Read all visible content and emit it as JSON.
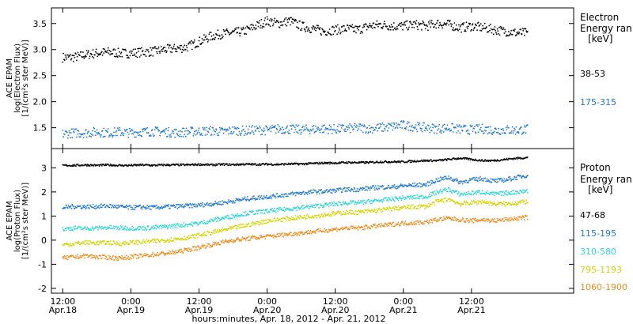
{
  "chart_data": [
    {
      "type": "scatter",
      "title": "",
      "ylabel_lines": [
        "ACE EPAM",
        "log(Electron Flux)",
        "[1/(cm²s ster MeV)]"
      ],
      "ylim": [
        1.1,
        3.8
      ],
      "yticks": [
        "1.5",
        "2.0",
        "2.5",
        "3.0",
        "3.5"
      ],
      "ytick_values": [
        1.5,
        2.0,
        2.5,
        3.0,
        3.5
      ],
      "legend": {
        "header_lines": [
          "Electron",
          "Energy ran",
          "[keV]"
        ],
        "placement": "right"
      },
      "series": [
        {
          "name": "38-53",
          "color": "#000000",
          "x": [
            0,
            2,
            4,
            6,
            8,
            10,
            12,
            14,
            16,
            18,
            20,
            22,
            24,
            26,
            28,
            30,
            32,
            34,
            36,
            38,
            40,
            42,
            44,
            46,
            48,
            50,
            52,
            54,
            56,
            58,
            60,
            62,
            64,
            66,
            68,
            70,
            72,
            74,
            76,
            78,
            80,
            82
          ],
          "values": [
            2.85,
            2.85,
            2.9,
            2.93,
            2.95,
            2.93,
            2.93,
            2.95,
            2.96,
            3.0,
            3.02,
            3.05,
            3.15,
            3.25,
            3.3,
            3.32,
            3.35,
            3.45,
            3.55,
            3.5,
            3.55,
            3.45,
            3.4,
            3.35,
            3.38,
            3.4,
            3.38,
            3.45,
            3.48,
            3.45,
            3.45,
            3.48,
            3.45,
            3.5,
            3.48,
            3.42,
            3.45,
            3.42,
            3.38,
            3.35,
            3.32,
            3.32
          ]
        },
        {
          "name": "175-315",
          "color": "#1f78d2",
          "x": [
            0,
            2,
            4,
            6,
            8,
            10,
            12,
            14,
            16,
            18,
            20,
            22,
            24,
            26,
            28,
            30,
            32,
            34,
            36,
            38,
            40,
            42,
            44,
            46,
            48,
            50,
            52,
            54,
            56,
            58,
            60,
            62,
            64,
            66,
            68,
            70,
            72,
            74,
            76,
            78,
            80,
            82
          ],
          "values": [
            1.38,
            1.4,
            1.4,
            1.42,
            1.4,
            1.42,
            1.4,
            1.42,
            1.43,
            1.42,
            1.4,
            1.42,
            1.43,
            1.44,
            1.42,
            1.45,
            1.44,
            1.46,
            1.45,
            1.48,
            1.47,
            1.46,
            1.47,
            1.48,
            1.47,
            1.48,
            1.5,
            1.48,
            1.5,
            1.52,
            1.55,
            1.52,
            1.5,
            1.48,
            1.5,
            1.47,
            1.46,
            1.48,
            1.45,
            1.46,
            1.45,
            1.47
          ]
        }
      ]
    },
    {
      "type": "scatter",
      "title": "",
      "ylabel_lines": [
        "ACE EPAM",
        "log(Proton Flux)",
        "[1/(cm²s ster MeV)]"
      ],
      "ylim": [
        -2.2,
        3.8
      ],
      "yticks": [
        "-2",
        "-1",
        "0",
        "1",
        "2",
        "3"
      ],
      "ytick_values": [
        -2,
        -1,
        0,
        1,
        2,
        3
      ],
      "xlabel": "hours:minutes, Apr. 18, 2012 - Apr. 21, 2012",
      "xlim": [
        -2,
        90
      ],
      "xticks": [
        {
          "x": 0,
          "time": "12:00",
          "date": "Apr.18"
        },
        {
          "x": 12,
          "time": "0:00",
          "date": "Apr.19"
        },
        {
          "x": 24,
          "time": "12:00",
          "date": "Apr.19"
        },
        {
          "x": 36,
          "time": "0:00",
          "date": "Apr.20"
        },
        {
          "x": 48,
          "time": "12:00",
          "date": "Apr.20"
        },
        {
          "x": 60,
          "time": "0:00",
          "date": "Apr.21"
        },
        {
          "x": 72,
          "time": "12:00",
          "date": "Apr.21"
        }
      ],
      "legend": {
        "header_lines": [
          "Proton",
          "Energy ran",
          "[keV]"
        ],
        "placement": "right"
      },
      "series": [
        {
          "name": "47-68",
          "color": "#000000",
          "x": [
            0,
            2,
            4,
            6,
            8,
            10,
            12,
            14,
            16,
            18,
            20,
            22,
            24,
            26,
            28,
            30,
            32,
            34,
            36,
            38,
            40,
            42,
            44,
            46,
            48,
            50,
            52,
            54,
            56,
            58,
            60,
            62,
            64,
            66,
            68,
            70,
            72,
            74,
            76,
            78,
            80,
            82
          ],
          "values": [
            3.1,
            3.1,
            3.12,
            3.1,
            3.12,
            3.1,
            3.1,
            3.12,
            3.1,
            3.12,
            3.12,
            3.12,
            3.14,
            3.12,
            3.14,
            3.13,
            3.15,
            3.14,
            3.15,
            3.14,
            3.16,
            3.16,
            3.18,
            3.2,
            3.2,
            3.22,
            3.22,
            3.22,
            3.25,
            3.25,
            3.25,
            3.28,
            3.3,
            3.3,
            3.35,
            3.4,
            3.35,
            3.3,
            3.3,
            3.35,
            3.4,
            3.42
          ]
        },
        {
          "name": "115-195",
          "color": "#1f78d2",
          "x": [
            0,
            2,
            4,
            6,
            8,
            10,
            12,
            14,
            16,
            18,
            20,
            22,
            24,
            26,
            28,
            30,
            32,
            34,
            36,
            38,
            40,
            42,
            44,
            46,
            48,
            50,
            52,
            54,
            56,
            58,
            60,
            62,
            64,
            66,
            68,
            70,
            72,
            74,
            76,
            78,
            80,
            82
          ],
          "values": [
            1.35,
            1.4,
            1.38,
            1.4,
            1.42,
            1.38,
            1.35,
            1.37,
            1.35,
            1.38,
            1.4,
            1.42,
            1.45,
            1.5,
            1.55,
            1.62,
            1.7,
            1.75,
            1.8,
            1.85,
            1.9,
            1.95,
            2.0,
            2.02,
            2.05,
            2.1,
            2.1,
            2.15,
            2.2,
            2.2,
            2.25,
            2.28,
            2.3,
            2.5,
            2.6,
            2.4,
            2.5,
            2.55,
            2.45,
            2.5,
            2.6,
            2.7
          ]
        },
        {
          "name": "310-580",
          "color": "#2ed6d6",
          "x": [
            0,
            2,
            4,
            6,
            8,
            10,
            12,
            14,
            16,
            18,
            20,
            22,
            24,
            26,
            28,
            30,
            32,
            34,
            36,
            38,
            40,
            42,
            44,
            46,
            48,
            50,
            52,
            54,
            56,
            58,
            60,
            62,
            64,
            66,
            68,
            70,
            72,
            74,
            76,
            78,
            80,
            82
          ],
          "values": [
            0.45,
            0.5,
            0.48,
            0.5,
            0.52,
            0.5,
            0.5,
            0.5,
            0.52,
            0.55,
            0.6,
            0.65,
            0.7,
            0.8,
            0.9,
            1.0,
            1.1,
            1.15,
            1.2,
            1.25,
            1.3,
            1.35,
            1.4,
            1.45,
            1.5,
            1.55,
            1.55,
            1.6,
            1.65,
            1.7,
            1.75,
            1.78,
            1.8,
            2.0,
            2.1,
            1.9,
            1.95,
            2.0,
            1.9,
            1.95,
            2.0,
            2.05
          ]
        },
        {
          "name": "795-1193",
          "color": "#d4d400",
          "x": [
            0,
            2,
            4,
            6,
            8,
            10,
            12,
            14,
            16,
            18,
            20,
            22,
            24,
            26,
            28,
            30,
            32,
            34,
            36,
            38,
            40,
            42,
            44,
            46,
            48,
            50,
            52,
            54,
            56,
            58,
            60,
            62,
            64,
            66,
            68,
            70,
            72,
            74,
            76,
            78,
            80,
            82
          ],
          "values": [
            -0.2,
            -0.15,
            -0.1,
            -0.12,
            -0.1,
            -0.15,
            -0.1,
            -0.08,
            -0.05,
            0.0,
            0.05,
            0.1,
            0.2,
            0.3,
            0.4,
            0.5,
            0.6,
            0.7,
            0.8,
            0.85,
            0.9,
            0.95,
            1.0,
            1.05,
            1.1,
            1.15,
            1.15,
            1.2,
            1.25,
            1.3,
            1.35,
            1.38,
            1.4,
            1.6,
            1.7,
            1.5,
            1.55,
            1.6,
            1.5,
            1.5,
            1.55,
            1.6
          ]
        },
        {
          "name": "1060-1900",
          "color": "#f08a1a",
          "x": [
            0,
            2,
            4,
            6,
            8,
            10,
            12,
            14,
            16,
            18,
            20,
            22,
            24,
            26,
            28,
            30,
            32,
            34,
            36,
            38,
            40,
            42,
            44,
            46,
            48,
            50,
            52,
            54,
            56,
            58,
            60,
            62,
            64,
            66,
            68,
            70,
            72,
            74,
            76,
            78,
            80,
            82
          ],
          "values": [
            -0.75,
            -0.7,
            -0.65,
            -0.7,
            -0.72,
            -0.75,
            -0.7,
            -0.65,
            -0.6,
            -0.55,
            -0.5,
            -0.4,
            -0.3,
            -0.2,
            -0.1,
            0.0,
            0.05,
            0.1,
            0.15,
            0.2,
            0.25,
            0.3,
            0.35,
            0.4,
            0.45,
            0.5,
            0.5,
            0.55,
            0.6,
            0.65,
            0.7,
            0.72,
            0.75,
            0.85,
            0.9,
            0.85,
            0.8,
            0.85,
            0.8,
            0.85,
            0.9,
            0.95
          ]
        }
      ]
    }
  ]
}
